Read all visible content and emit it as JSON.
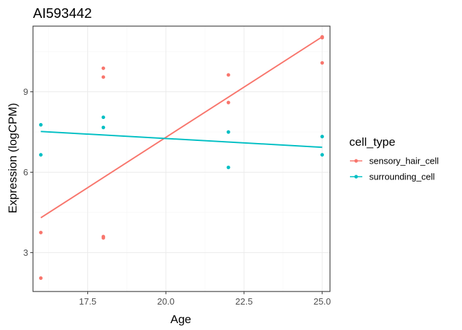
{
  "chart_data": {
    "type": "scatter",
    "title": "AI593442",
    "xlabel": "Age",
    "ylabel": "Expression (logCPM)",
    "xlim": [
      15.75,
      25.25
    ],
    "ylim": [
      1.55,
      11.45
    ],
    "x_ticks": [
      17.5,
      20.0,
      22.5,
      25.0
    ],
    "x_tick_labels": [
      "17.5",
      "20.0",
      "22.5",
      "25.0"
    ],
    "y_ticks": [
      3,
      6,
      9
    ],
    "y_tick_labels": [
      "3",
      "6",
      "9"
    ],
    "grid": true,
    "legend": {
      "title": "cell_type",
      "position": "right"
    },
    "series": [
      {
        "name": "sensory_hair_cell",
        "color": "#F8766D",
        "x": [
          16,
          16,
          18,
          18,
          18,
          18,
          22,
          22,
          25,
          25,
          25
        ],
        "y": [
          2.05,
          3.75,
          3.55,
          3.6,
          9.55,
          9.88,
          8.6,
          9.63,
          10.08,
          11.02,
          11.05
        ],
        "fit": {
          "x": [
            16,
            25
          ],
          "y": [
            4.3,
            11.05
          ]
        }
      },
      {
        "name": "surrounding_cell",
        "color": "#00BFC4",
        "x": [
          16,
          16,
          18,
          18,
          22,
          22,
          25,
          25
        ],
        "y": [
          6.65,
          7.77,
          7.67,
          8.05,
          6.18,
          7.5,
          6.65,
          7.33
        ],
        "fit": {
          "x": [
            16,
            25
          ],
          "y": [
            7.52,
            6.93
          ]
        }
      }
    ]
  },
  "colors": {
    "panel_border": "#333333",
    "grid_major": "#ebebeb",
    "grid_minor": "#f5f5f5"
  }
}
